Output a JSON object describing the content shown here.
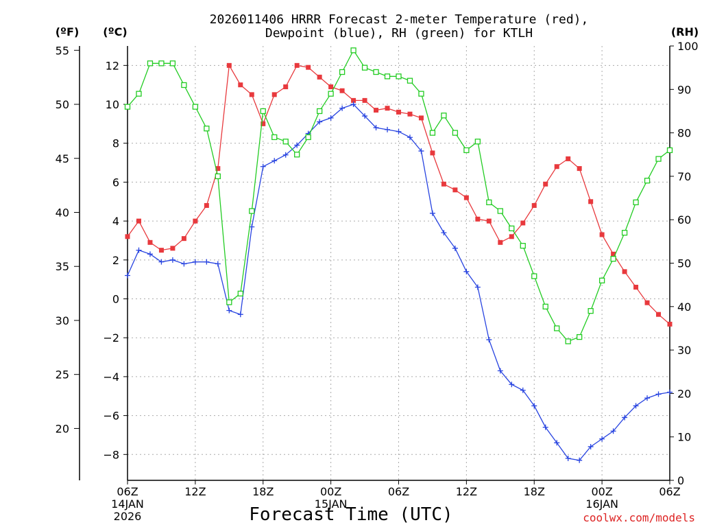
{
  "chart_data": {
    "type": "line",
    "title_line1": "2026011406 HRRR Forecast 2-meter Temperature (red),",
    "title_line2": "Dewpoint (blue), RH (green) for KTLH",
    "xlabel": "Forecast Time (UTC)",
    "credit": "coolwx.com/models",
    "units": {
      "fahrenheit": "(ºF)",
      "celsius": "(ºC)",
      "rh": "(RH)"
    },
    "x_ticks": [
      {
        "hour": 0,
        "label": "06Z",
        "sub1": "14JAN",
        "sub2": "2026"
      },
      {
        "hour": 6,
        "label": "12Z"
      },
      {
        "hour": 12,
        "label": "18Z"
      },
      {
        "hour": 18,
        "label": "00Z",
        "sub1": "15JAN"
      },
      {
        "hour": 24,
        "label": "06Z"
      },
      {
        "hour": 30,
        "label": "12Z"
      },
      {
        "hour": 36,
        "label": "18Z"
      },
      {
        "hour": 42,
        "label": "00Z",
        "sub1": "16JAN"
      },
      {
        "hour": 48,
        "label": "06Z"
      }
    ],
    "x_range": [
      0,
      48
    ],
    "celsius_axis": {
      "range": [
        -9.33,
        13.0
      ],
      "ticks": [
        "12",
        "10",
        "8",
        "6",
        "4",
        "2",
        "0",
        "−2",
        "−4",
        "−6",
        "−8"
      ]
    },
    "fahrenheit_axis": {
      "range": [
        15.2,
        55.4
      ],
      "ticks": [
        "55",
        "50",
        "45",
        "40",
        "35",
        "30",
        "25",
        "20"
      ]
    },
    "rh_axis": {
      "range": [
        0,
        100
      ],
      "ticks": [
        "100",
        "90",
        "80",
        "70",
        "60",
        "50",
        "40",
        "30",
        "20",
        "10",
        "0"
      ]
    },
    "series": [
      {
        "name": "Temperature",
        "units": "°C",
        "color": "#e8393d",
        "marker": "filled-square",
        "values": [
          3.2,
          4.0,
          2.9,
          2.5,
          2.6,
          3.1,
          4.0,
          4.8,
          6.7,
          12.0,
          11.0,
          10.5,
          9.0,
          10.5,
          10.9,
          12.0,
          11.9,
          11.4,
          10.9,
          10.7,
          10.2,
          10.2,
          9.7,
          9.8,
          9.6,
          9.5,
          9.3,
          7.5,
          5.9,
          5.6,
          5.2,
          4.1,
          4.0,
          2.9,
          3.2,
          3.9,
          4.8,
          5.9,
          6.8,
          7.2,
          6.7,
          5.0,
          3.3,
          2.3,
          1.4,
          0.6,
          -0.2,
          -0.8,
          -1.3
        ]
      },
      {
        "name": "Dewpoint",
        "units": "°C",
        "color": "#2743e0",
        "marker": "plus",
        "values": [
          1.2,
          2.5,
          2.3,
          1.9,
          2.0,
          1.8,
          1.9,
          1.9,
          1.8,
          -0.6,
          -0.8,
          3.7,
          6.8,
          7.1,
          7.4,
          7.9,
          8.5,
          9.1,
          9.3,
          9.8,
          10.0,
          9.4,
          8.8,
          8.7,
          8.6,
          8.3,
          7.6,
          4.4,
          3.4,
          2.6,
          1.4,
          0.6,
          -2.1,
          -3.7,
          -4.4,
          -4.7,
          -5.5,
          -6.6,
          -7.4,
          -8.2,
          -8.3,
          -7.6,
          -7.2,
          -6.8,
          -6.1,
          -5.5,
          -5.1,
          -4.9,
          -4.8
        ]
      },
      {
        "name": "RH",
        "units": "%",
        "color": "#22cc22",
        "marker": "open-square",
        "values": [
          86,
          89,
          96,
          96,
          96,
          91,
          86,
          81,
          70,
          41,
          43,
          62,
          85,
          79,
          78,
          75,
          79,
          85,
          89,
          94,
          99,
          95,
          94,
          93,
          93,
          92,
          89,
          80,
          84,
          80,
          76,
          78,
          64,
          62,
          58,
          54,
          47,
          40,
          35,
          32,
          33,
          39,
          46,
          51,
          57,
          64,
          69,
          74,
          76
        ]
      }
    ]
  }
}
